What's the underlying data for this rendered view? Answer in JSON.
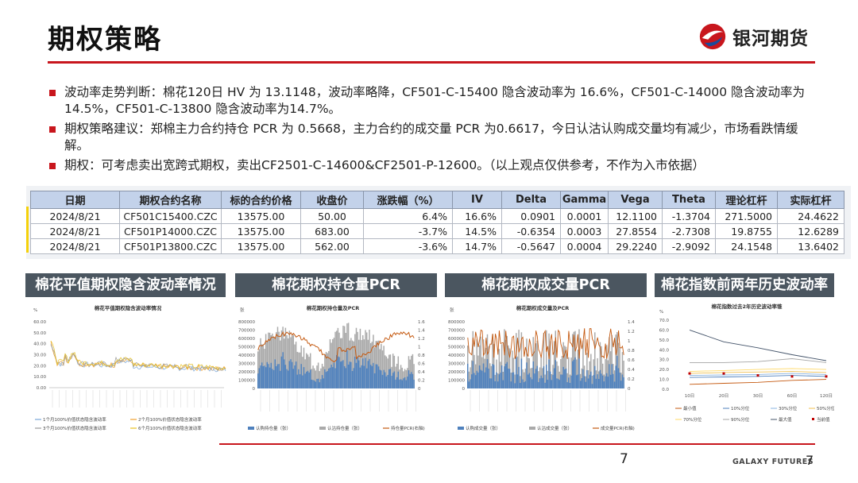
{
  "title": "期权策略",
  "logo": {
    "text": "银河期货"
  },
  "bullets": [
    "波动率走势判断：棉花120日 HV 为 13.1148，波动率略降，CF501-C-15400 隐含波动率为 16.6%，CF501-C-14000 隐含波动率为 14.5%，CF501-C-13800 隐含波动率为14.7%。",
    "期权策略建议：郑棉主力合约持仓 PCR 为 0.5668，主力合约的成交量 PCR 为0.6617，今日认沽认购成交量均有减少，市场看跌情缓解。",
    "期权：可考虑卖出宽跨式期权，卖出CF2501-C-14600&CF2501-P-12600。（以上观点仅供参考，不作为入市依据）"
  ],
  "table": {
    "headers": [
      "日期",
      "期权合约名称",
      "标的合约价格",
      "收盘价",
      "涨跌幅（%）",
      "IV",
      "Delta",
      "Gamma",
      "Vega",
      "Theta",
      "理论杠杆",
      "实际杠杆"
    ],
    "rows": [
      [
        "2024/8/21",
        "CF501C15400.CZC",
        "13575.00",
        "50.00",
        "6.4%",
        "16.6%",
        "0.0901",
        "0.0001",
        "12.1100",
        "-1.3704",
        "271.5000",
        "24.4622"
      ],
      [
        "2024/8/21",
        "CF501P14000.CZC",
        "13575.00",
        "683.00",
        "-3.7%",
        "14.5%",
        "-0.6354",
        "0.0003",
        "27.8554",
        "-2.7308",
        "19.8755",
        "12.6289"
      ],
      [
        "2024/8/21",
        "CF501P13800.CZC",
        "13575.00",
        "562.00",
        "-3.6%",
        "14.7%",
        "-0.5647",
        "0.0004",
        "29.2240",
        "-2.9092",
        "24.1548",
        "13.6402"
      ]
    ]
  },
  "panels": [
    {
      "heading": "棉花平值期权隐含波动率情况"
    },
    {
      "heading": "棉花期权持仓量PCR"
    },
    {
      "heading": "棉花期权成交量PCR"
    },
    {
      "heading": "棉花指数前两年历史波动率锥"
    }
  ],
  "charts": {
    "iv": {
      "title": "棉花平值期权隐含波动率情况",
      "unit": "%",
      "yticks": [
        "60.00",
        "50.00",
        "40.00",
        "30.00",
        "20.00",
        "10.00",
        "0.00"
      ],
      "legend": [
        "1个月100%价值状态隐含波动率",
        "2个月100%价值状态隐含波动率",
        "3个月100%价值状态隐含波动率",
        "6个月100%价值状态隐含波动率"
      ],
      "colors": [
        "#7aa6d8",
        "#f0a030",
        "#9a9a9a",
        "#e8c020"
      ]
    },
    "oi": {
      "title": "棉花期权持仓量及PCR",
      "unit": "张",
      "yticks": [
        "800000",
        "700000",
        "600000",
        "500000",
        "400000",
        "300000",
        "200000",
        "100000",
        "0"
      ],
      "y2ticks": [
        "1.6",
        "1.4",
        "1.2",
        "1",
        "0.8",
        "0.6",
        "0.4",
        "0.2",
        "0"
      ],
      "legend": [
        "认购持仓量（张）",
        "认沽持仓量（张）",
        "持仓量PCR(右轴)"
      ]
    },
    "vol": {
      "title": "棉花期权成交量及PCR",
      "unit": "张",
      "yticks": [
        "800000",
        "700000",
        "600000",
        "500000",
        "400000",
        "300000",
        "200000",
        "100000",
        "0"
      ],
      "y2ticks": [
        "1.4",
        "1.2",
        "1",
        "0.8",
        "0.6",
        "0.4",
        "0.2",
        "0"
      ],
      "legend": [
        "认购成交量（张）",
        "认沽成交量（张）",
        "成交量PCR(右轴)"
      ]
    },
    "cone": {
      "title": "棉花指数过去2年历史波动率锥",
      "unit": "%",
      "yticks": [
        "70.0",
        "60.0",
        "50.0",
        "40.0",
        "30.0",
        "20.0",
        "10.0",
        "0.0"
      ],
      "xticks": [
        "10日",
        "20日",
        "30日",
        "60日",
        "120日"
      ],
      "legend": [
        "最小值",
        "10%分位",
        "30%分位",
        "50%分位",
        "70%分位",
        "90%分位",
        "最大值",
        "当前值"
      ]
    }
  },
  "footer": {
    "page_left": "7",
    "brand": "GALAXY FUTURES",
    "page_right": "7"
  }
}
